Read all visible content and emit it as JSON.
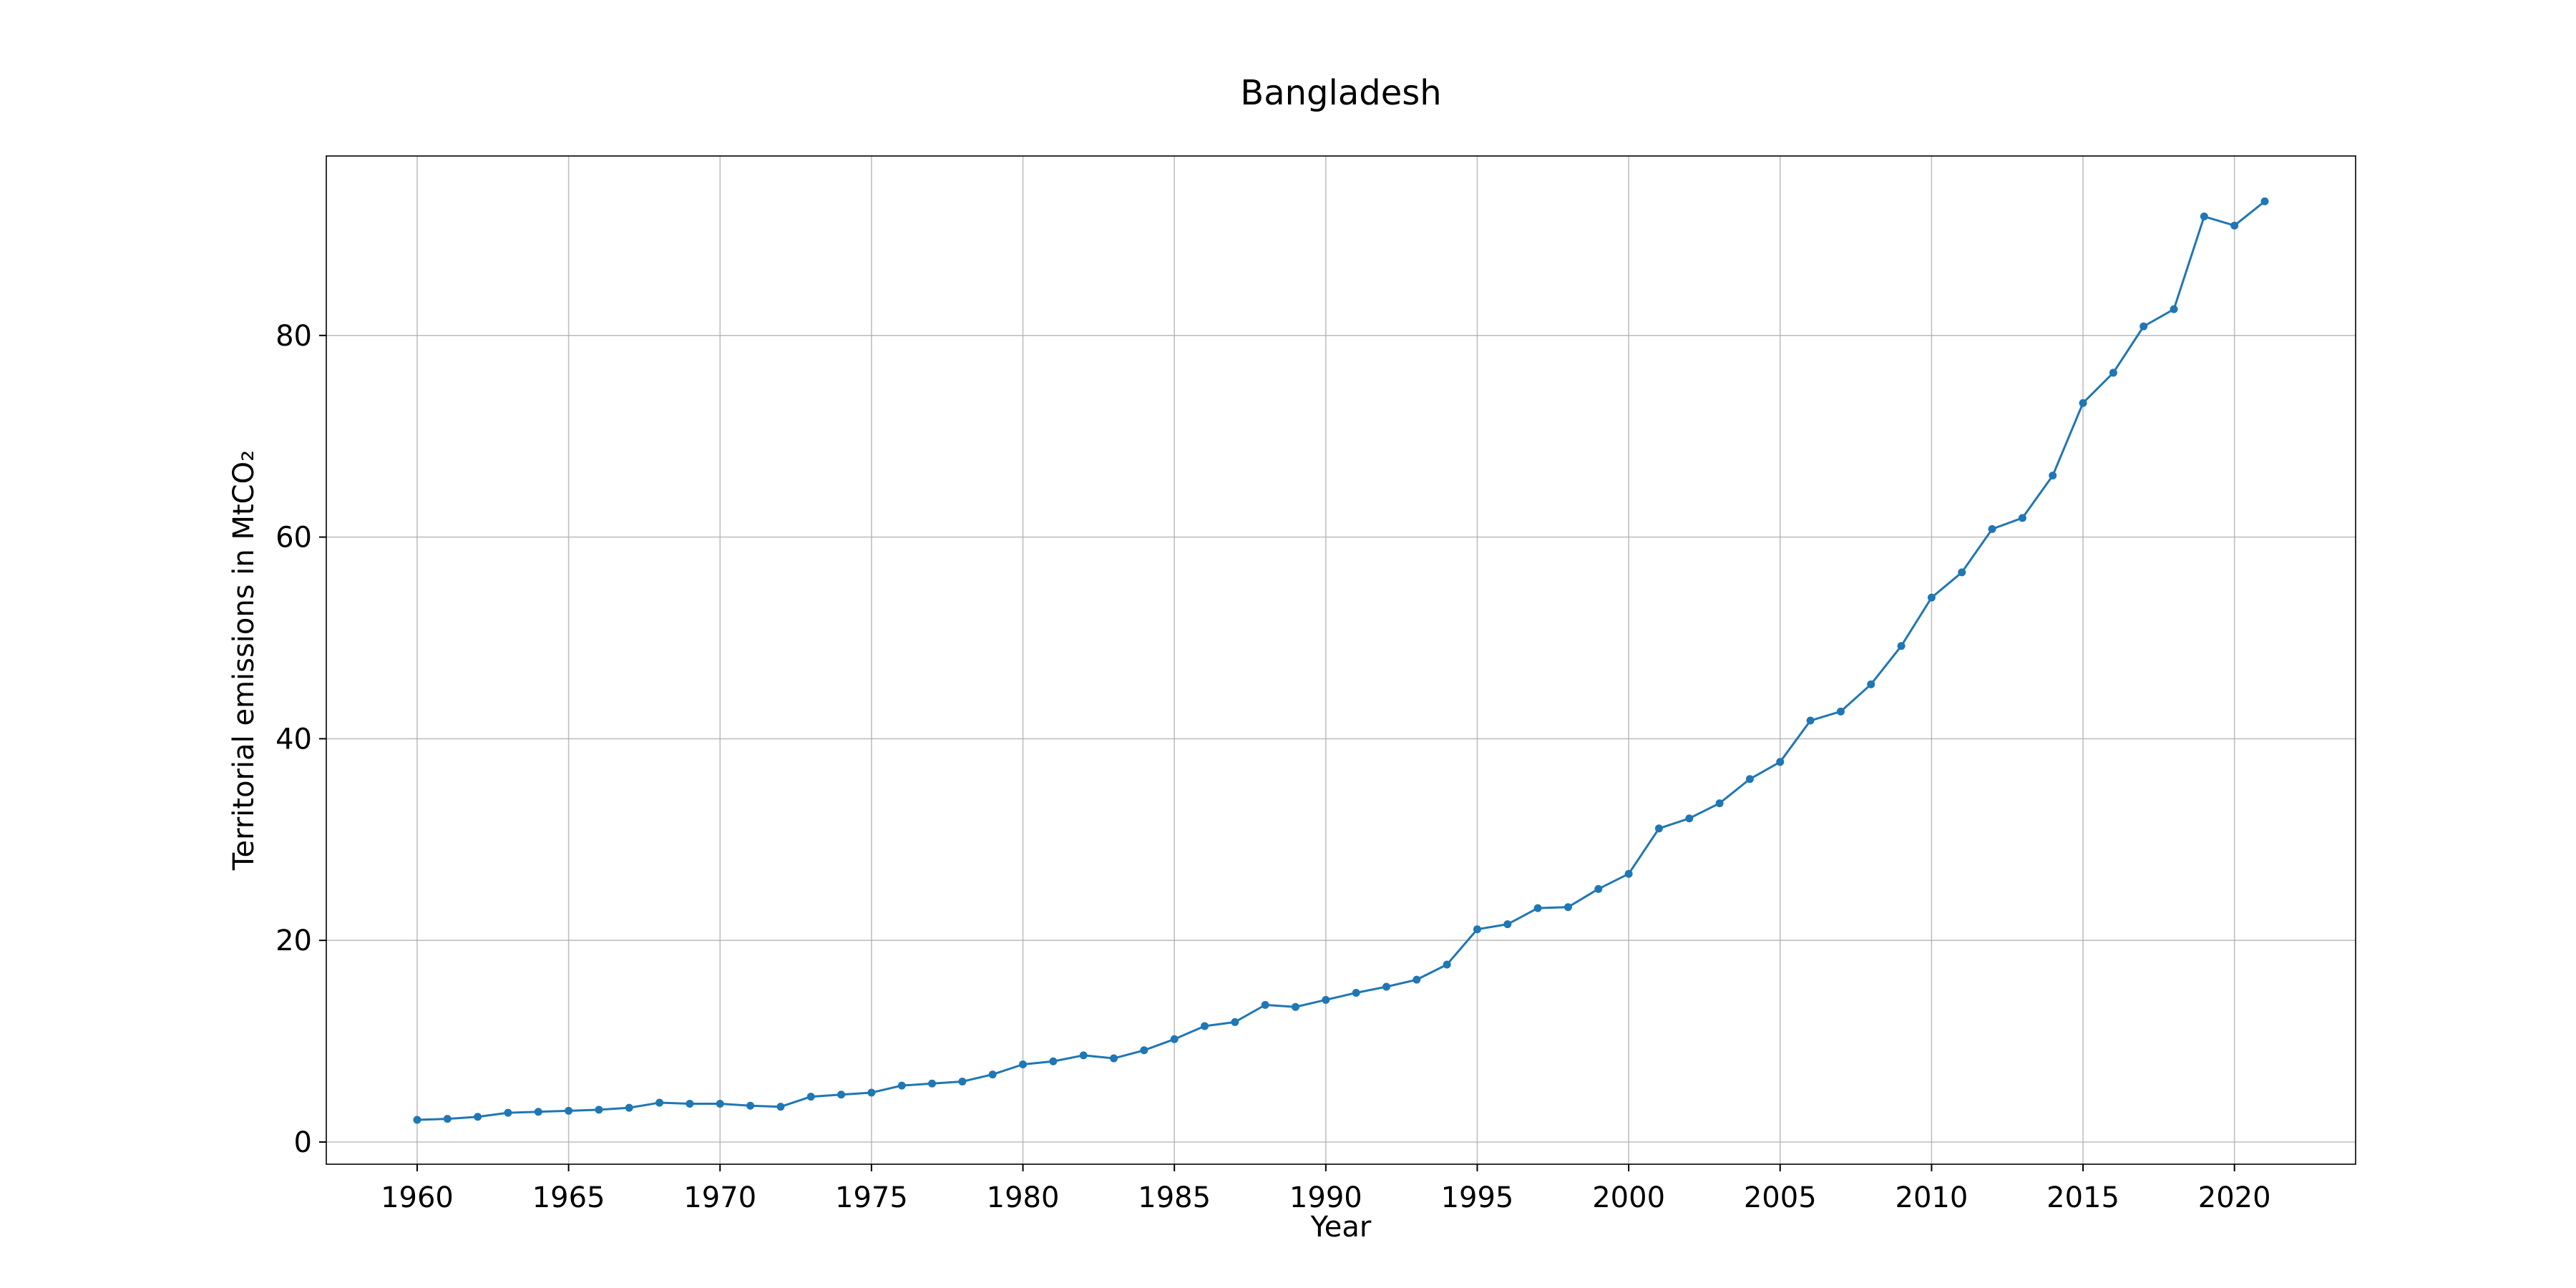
{
  "chart_data": {
    "type": "line",
    "title": "Bangladesh",
    "xlabel": "Year",
    "ylabel": "Territorial emissions in MtCO₂",
    "xlim": [
      1957,
      2024
    ],
    "ylim": [
      -2.2,
      97.8
    ],
    "xticks": [
      1960,
      1965,
      1970,
      1975,
      1980,
      1985,
      1990,
      1995,
      2000,
      2005,
      2010,
      2015,
      2020
    ],
    "yticks": [
      0,
      20,
      40,
      60,
      80
    ],
    "grid": true,
    "legend": "none",
    "series": [
      {
        "color": "#1f77b4",
        "marker": "circle",
        "x": [
          1960,
          1961,
          1962,
          1963,
          1964,
          1965,
          1966,
          1967,
          1968,
          1969,
          1970,
          1971,
          1972,
          1973,
          1974,
          1975,
          1976,
          1977,
          1978,
          1979,
          1980,
          1981,
          1982,
          1983,
          1984,
          1985,
          1986,
          1987,
          1988,
          1989,
          1990,
          1991,
          1992,
          1993,
          1994,
          1995,
          1996,
          1997,
          1998,
          1999,
          2000,
          2001,
          2002,
          2003,
          2004,
          2005,
          2006,
          2007,
          2008,
          2009,
          2010,
          2011,
          2012,
          2013,
          2014,
          2015,
          2016,
          2017,
          2018,
          2019,
          2020,
          2021
        ],
        "y": [
          2.2,
          2.3,
          2.5,
          2.9,
          3.0,
          3.1,
          3.2,
          3.4,
          3.9,
          3.8,
          3.8,
          3.6,
          3.5,
          4.5,
          4.7,
          4.9,
          5.6,
          5.8,
          6.0,
          6.7,
          7.7,
          8.0,
          8.6,
          8.3,
          9.1,
          10.2,
          11.5,
          11.9,
          13.6,
          13.4,
          14.1,
          14.8,
          15.4,
          16.1,
          17.6,
          21.1,
          21.6,
          23.2,
          23.3,
          25.1,
          26.6,
          31.1,
          32.1,
          33.6,
          36.0,
          37.7,
          41.8,
          42.7,
          45.4,
          49.2,
          54.0,
          56.5,
          60.8,
          61.9,
          66.1,
          73.3,
          76.3,
          80.9,
          82.6,
          91.8,
          90.9,
          93.3
        ]
      }
    ]
  }
}
